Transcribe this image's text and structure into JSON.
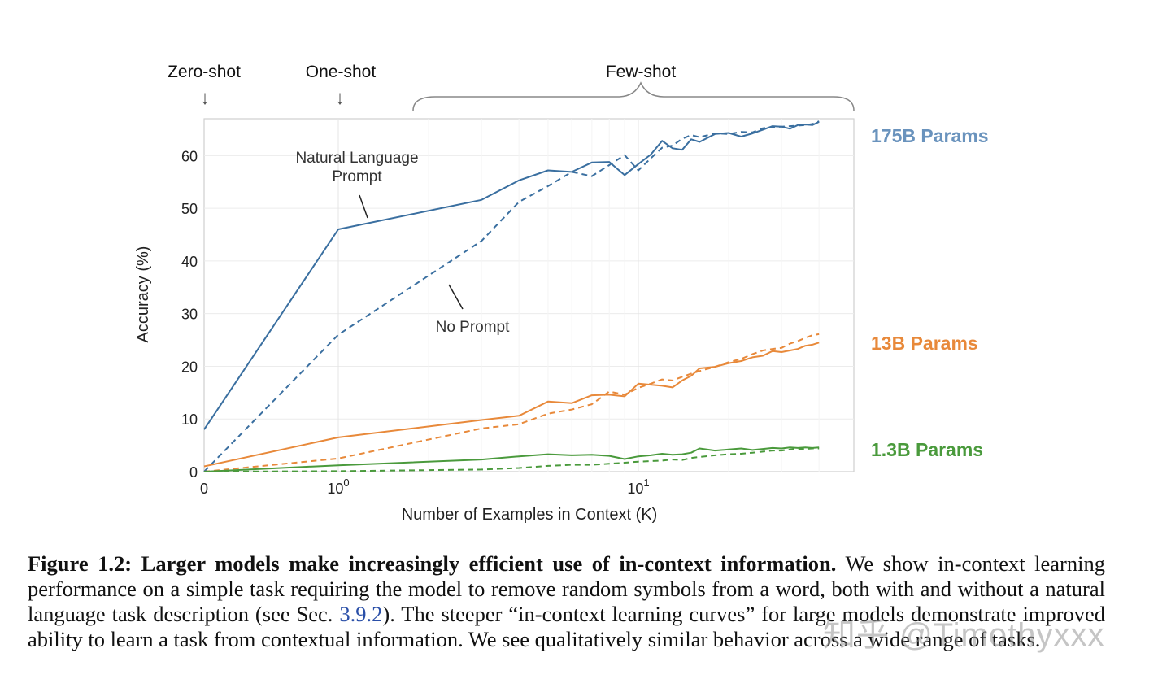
{
  "region_labels": {
    "zero_shot": "Zero-shot",
    "one_shot": "One-shot",
    "few_shot": "Few-shot",
    "arrow_glyph": "↓"
  },
  "series_labels": {
    "large": "175B Params",
    "medium": "13B Params",
    "small": "1.3B Params"
  },
  "annotations": {
    "nl_prompt_line1": "Natural Language",
    "nl_prompt_line2": "Prompt",
    "no_prompt": "No Prompt"
  },
  "caption": {
    "bold": "Figure 1.2: Larger models make increasingly efficient use of in-context information.",
    "part1": " We show in-context learning performance on a simple task requiring the model to remove random symbols from a word, both with and without a natural language task description (see Sec. ",
    "link": "3.9.2",
    "part2": "). The steeper “in-context learning curves” for large models demonstrate improved ability to learn a task from contextual information. We see qualitatively similar behavior across a wide range of tasks."
  },
  "watermark": "知乎 @Timothyxxx",
  "colors": {
    "blue": "#3a6fa0",
    "orange": "#e8893a",
    "green": "#4a9a3c",
    "label_blue": "#6a93bd"
  },
  "chart_data": {
    "type": "line",
    "xlabel": "Number of Examples in Context  (K)",
    "ylabel": "Accuracy (%)",
    "x_scale": "symlog (0, then log10)",
    "xlim": [
      0,
      40
    ],
    "ylim": [
      0,
      67
    ],
    "yticks": [
      0,
      10,
      20,
      30,
      40,
      50,
      60
    ],
    "xticks": [
      {
        "value": 0,
        "base": "0",
        "exp": ""
      },
      {
        "value": 1,
        "base": "10",
        "exp": "0"
      },
      {
        "value": 10,
        "base": "10",
        "exp": "1"
      }
    ],
    "grid": true,
    "legend": "series labels at right of plot",
    "series": [
      {
        "name": "175B Params",
        "style": "solid",
        "color": "blue",
        "x": [
          0,
          1,
          3,
          4,
          5,
          6,
          7,
          8,
          9,
          10,
          11,
          12,
          13,
          14,
          15,
          16,
          18,
          20,
          22,
          24,
          26,
          28,
          30,
          32,
          34,
          36,
          38,
          40
        ],
        "y": [
          8,
          46,
          51.6,
          55.3,
          57.2,
          56.9,
          58.7,
          58.8,
          56.3,
          58.4,
          60.2,
          62.8,
          61.4,
          61.1,
          63.1,
          62.6,
          64.1,
          64.3,
          63.6,
          64.2,
          64.9,
          65.6,
          65.5,
          65.1,
          65.8,
          65.9,
          65.8,
          66.4
        ]
      },
      {
        "name": "175B Params",
        "style": "dashed",
        "color": "blue",
        "x": [
          0,
          1,
          3,
          4,
          5,
          6,
          7,
          8,
          9,
          10,
          11,
          12,
          13,
          14,
          15,
          16,
          18,
          20,
          22,
          24,
          26,
          28,
          30,
          32,
          34,
          36,
          38,
          40
        ],
        "y": [
          0,
          26,
          43.8,
          51.2,
          54.2,
          56.9,
          56.1,
          58.2,
          60.1,
          57.2,
          59.5,
          61.5,
          61.9,
          63.2,
          63.9,
          63.5,
          64.2,
          64.1,
          64.5,
          64.4,
          65.2,
          65.4,
          65.5,
          65.6,
          65.7,
          65.8,
          66.0,
          66.5
        ]
      },
      {
        "name": "13B Params",
        "style": "solid",
        "color": "orange",
        "x": [
          0,
          1,
          3,
          4,
          5,
          6,
          7,
          8,
          9,
          10,
          11,
          12,
          13,
          14,
          15,
          16,
          18,
          20,
          22,
          24,
          26,
          28,
          30,
          32,
          34,
          36,
          38,
          40
        ],
        "y": [
          1,
          6.5,
          9.8,
          10.6,
          13.3,
          13.0,
          14.5,
          14.6,
          14.3,
          16.7,
          16.5,
          16.3,
          16.0,
          17.3,
          18.2,
          19.6,
          19.9,
          20.6,
          21.0,
          21.7,
          22.0,
          22.9,
          22.7,
          23.0,
          23.3,
          23.9,
          24.1,
          24.5
        ]
      },
      {
        "name": "13B Params",
        "style": "dashed",
        "color": "orange",
        "x": [
          0,
          1,
          3,
          4,
          5,
          6,
          7,
          8,
          9,
          10,
          11,
          12,
          13,
          14,
          15,
          16,
          18,
          20,
          22,
          24,
          26,
          28,
          30,
          32,
          34,
          36,
          38,
          40
        ],
        "y": [
          0,
          2.5,
          8.2,
          9.0,
          11.0,
          11.8,
          12.8,
          15.2,
          14.6,
          15.9,
          16.7,
          17.5,
          17.3,
          18.0,
          18.6,
          19.1,
          19.9,
          20.8,
          21.4,
          22.3,
          23.0,
          23.3,
          23.5,
          24.3,
          24.8,
          25.4,
          25.9,
          26.1
        ]
      },
      {
        "name": "1.3B Params",
        "style": "solid",
        "color": "green",
        "x": [
          0,
          1,
          3,
          4,
          5,
          6,
          7,
          8,
          9,
          10,
          11,
          12,
          13,
          14,
          15,
          16,
          18,
          20,
          22,
          24,
          26,
          28,
          30,
          32,
          34,
          36,
          38,
          40
        ],
        "y": [
          0,
          1.2,
          2.3,
          2.9,
          3.3,
          3.1,
          3.2,
          3.0,
          2.4,
          2.9,
          3.1,
          3.4,
          3.2,
          3.3,
          3.6,
          4.4,
          4.0,
          4.2,
          4.4,
          4.1,
          4.3,
          4.5,
          4.4,
          4.6,
          4.5,
          4.6,
          4.5,
          4.6
        ]
      },
      {
        "name": "1.3B Params",
        "style": "dashed",
        "color": "green",
        "x": [
          0,
          1,
          3,
          4,
          5,
          6,
          7,
          8,
          9,
          10,
          11,
          12,
          13,
          14,
          15,
          16,
          18,
          20,
          22,
          24,
          26,
          28,
          30,
          32,
          34,
          36,
          38,
          40
        ],
        "y": [
          0,
          0.1,
          0.4,
          0.7,
          1.1,
          1.3,
          1.3,
          1.5,
          1.7,
          1.9,
          2.0,
          2.1,
          2.3,
          2.2,
          2.6,
          2.8,
          3.1,
          3.3,
          3.4,
          3.6,
          3.8,
          4.0,
          4.0,
          4.2,
          4.3,
          4.3,
          4.4,
          4.4
        ]
      }
    ]
  }
}
